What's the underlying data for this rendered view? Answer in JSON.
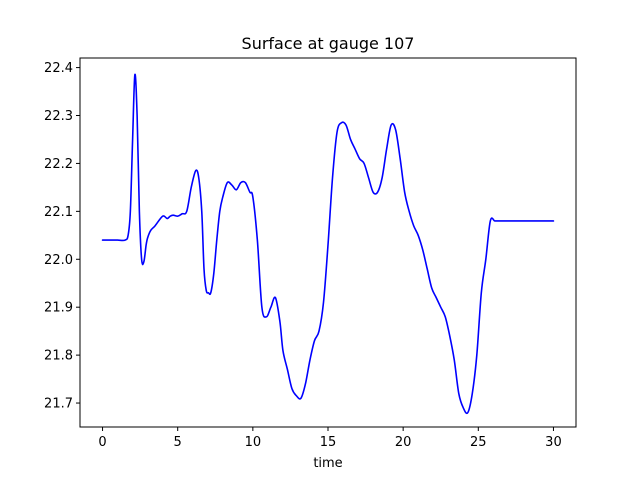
{
  "chart_data": {
    "type": "line",
    "title": "Surface at gauge 107",
    "xlabel": "time",
    "ylabel": "",
    "xlim": [
      -1.5,
      31.5
    ],
    "ylim": [
      21.65,
      22.42
    ],
    "xticks": [
      0,
      5,
      10,
      15,
      20,
      25,
      30
    ],
    "yticks": [
      21.7,
      21.8,
      21.9,
      22.0,
      22.1,
      22.2,
      22.3,
      22.4
    ],
    "grid": false,
    "series": [
      {
        "color": "#0000ff",
        "x": [
          0.0,
          0.5,
          1.0,
          1.5,
          1.7,
          1.85,
          2.0,
          2.15,
          2.3,
          2.45,
          2.6,
          2.75,
          2.9,
          3.0,
          3.2,
          3.5,
          4.0,
          4.3,
          4.5,
          4.7,
          5.0,
          5.3,
          5.6,
          5.9,
          6.2,
          6.4,
          6.6,
          6.75,
          6.9,
          7.05,
          7.2,
          7.4,
          7.6,
          7.8,
          8.0,
          8.3,
          8.6,
          8.9,
          9.2,
          9.5,
          9.8,
          10.0,
          10.3,
          10.6,
          10.9,
          11.2,
          11.5,
          11.8,
          12.0,
          12.3,
          12.6,
          12.9,
          13.2,
          13.5,
          13.8,
          14.1,
          14.4,
          14.7,
          15.0,
          15.3,
          15.6,
          15.9,
          16.2,
          16.5,
          16.8,
          17.1,
          17.4,
          17.7,
          18.0,
          18.3,
          18.6,
          18.9,
          19.2,
          19.5,
          19.8,
          20.1,
          20.4,
          20.7,
          21.0,
          21.3,
          21.6,
          21.9,
          22.2,
          22.5,
          22.8,
          23.1,
          23.4,
          23.7,
          24.0,
          24.3,
          24.6,
          24.9,
          25.2,
          25.5,
          25.8,
          26.1,
          26.4,
          26.7,
          27.0,
          27.3,
          27.6,
          27.9,
          28.2,
          28.5,
          28.8,
          29.1,
          29.4,
          29.7,
          30.0
        ],
        "y": [
          22.04,
          22.04,
          22.04,
          22.04,
          22.05,
          22.1,
          22.25,
          22.385,
          22.3,
          22.1,
          22.0,
          21.995,
          22.03,
          22.045,
          22.06,
          22.07,
          22.09,
          22.085,
          22.09,
          22.092,
          22.09,
          22.095,
          22.1,
          22.15,
          22.185,
          22.17,
          22.1,
          21.98,
          21.935,
          21.93,
          21.93,
          21.97,
          22.04,
          22.1,
          22.13,
          22.16,
          22.155,
          22.145,
          22.16,
          22.16,
          22.14,
          22.13,
          22.04,
          21.9,
          21.88,
          21.9,
          21.92,
          21.87,
          21.81,
          21.77,
          21.73,
          21.715,
          21.71,
          21.74,
          21.79,
          21.83,
          21.85,
          21.91,
          22.03,
          22.17,
          22.265,
          22.285,
          22.28,
          22.25,
          22.23,
          22.21,
          22.2,
          22.17,
          22.14,
          22.14,
          22.17,
          22.23,
          22.28,
          22.27,
          22.21,
          22.14,
          22.1,
          22.07,
          22.05,
          22.02,
          21.98,
          21.94,
          21.92,
          21.9,
          21.88,
          21.84,
          21.79,
          21.72,
          21.69,
          21.68,
          21.72,
          21.8,
          21.93,
          22.0,
          22.08,
          22.08,
          22.08,
          22.08,
          22.08,
          22.08,
          22.08,
          22.08,
          22.08,
          22.08,
          22.08,
          22.08,
          22.08,
          22.08,
          22.08
        ]
      }
    ]
  }
}
